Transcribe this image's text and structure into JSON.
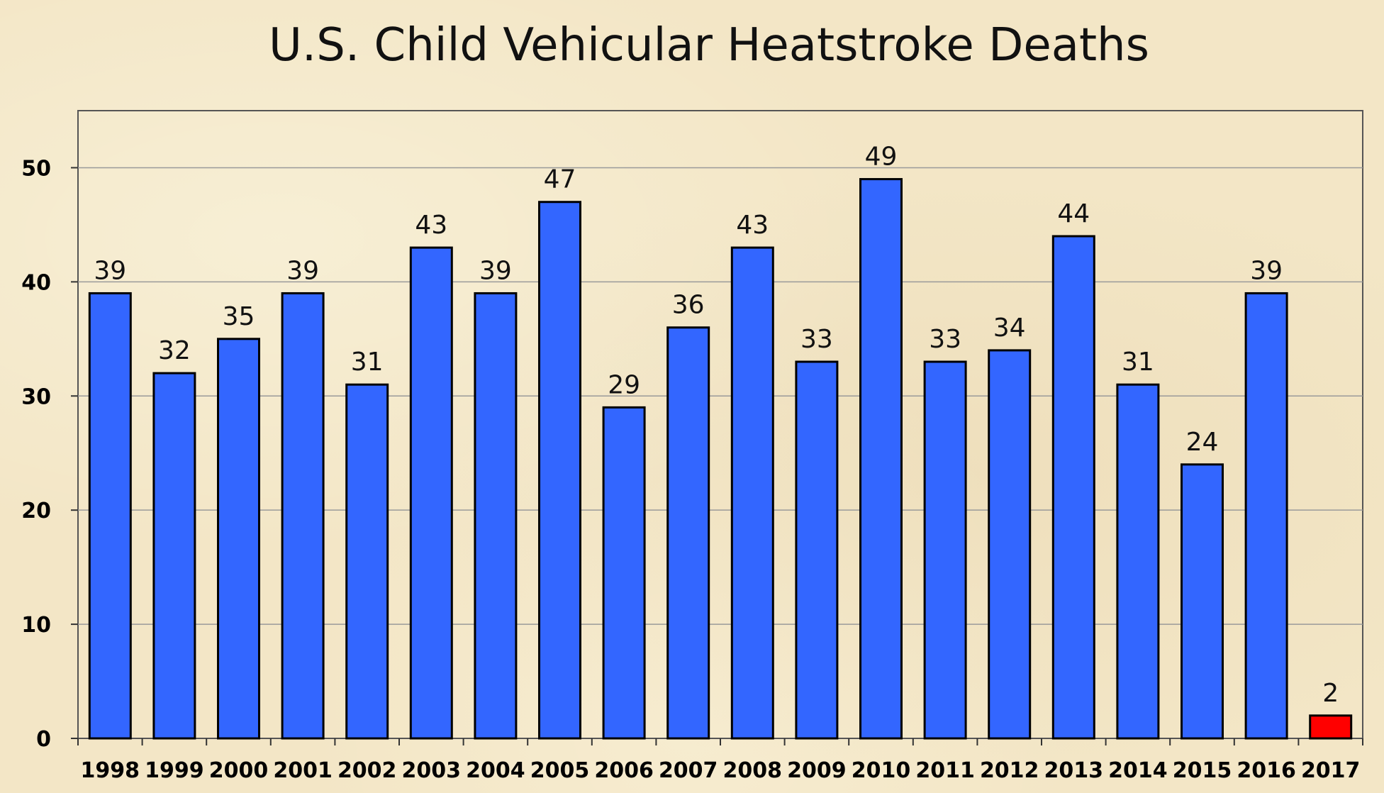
{
  "chart_data": {
    "type": "bar",
    "title": "U.S. Child Vehicular Heatstroke Deaths",
    "xlabel": "",
    "ylabel": "",
    "categories": [
      "1998",
      "1999",
      "2000",
      "2001",
      "2002",
      "2003",
      "2004",
      "2005",
      "2006",
      "2007",
      "2008",
      "2009",
      "2010",
      "2011",
      "2012",
      "2013",
      "2014",
      "2015",
      "2016",
      "2017"
    ],
    "values": [
      39,
      32,
      35,
      39,
      31,
      43,
      39,
      47,
      29,
      36,
      43,
      33,
      49,
      33,
      34,
      44,
      31,
      24,
      39,
      2
    ],
    "bar_colors": [
      "#3366ff",
      "#3366ff",
      "#3366ff",
      "#3366ff",
      "#3366ff",
      "#3366ff",
      "#3366ff",
      "#3366ff",
      "#3366ff",
      "#3366ff",
      "#3366ff",
      "#3366ff",
      "#3366ff",
      "#3366ff",
      "#3366ff",
      "#3366ff",
      "#3366ff",
      "#3366ff",
      "#3366ff",
      "#ff0000"
    ],
    "data_labels": [
      "39",
      "32",
      "35",
      "39",
      "31",
      "43",
      "39",
      "47",
      "29",
      "36",
      "43",
      "33",
      "49",
      "33",
      "34",
      "44",
      "31",
      "24",
      "39",
      "2"
    ],
    "ylim": [
      0,
      55
    ],
    "yticks": [
      0,
      10,
      20,
      30,
      40,
      50
    ],
    "ytick_labels": [
      "0",
      "10",
      "20",
      "30",
      "40",
      "50"
    ],
    "grid": true,
    "legend": "none"
  }
}
